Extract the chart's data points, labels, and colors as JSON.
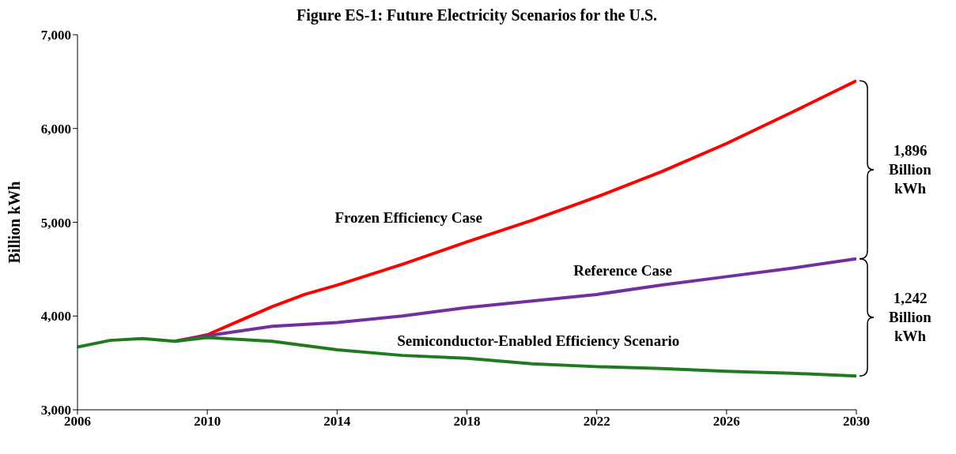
{
  "chart_data": {
    "type": "line",
    "title": "Figure ES-1: Future Electricity Scenarios for the U.S.",
    "ylabel": "Billion kWh",
    "xlim": [
      2006,
      2030
    ],
    "xticks": [
      2006,
      2010,
      2014,
      2018,
      2022,
      2026,
      2030
    ],
    "ylim": [
      3000,
      7000
    ],
    "yticks": [
      {
        "value": 3000,
        "label": "3,000"
      },
      {
        "value": 4000,
        "label": "4,000"
      },
      {
        "value": 5000,
        "label": "5,000"
      },
      {
        "value": 6000,
        "label": "6,000"
      },
      {
        "value": 7000,
        "label": "7,000"
      }
    ],
    "grid": false,
    "legend": false,
    "marker": "none",
    "line_style": "solid",
    "series": [
      {
        "name": "Frozen Efficiency Case",
        "color": "#ff0000",
        "x": [
          2009,
          2010,
          2011,
          2012,
          2013,
          2014,
          2016,
          2018,
          2020,
          2022,
          2024,
          2026,
          2028,
          2030
        ],
        "values": [
          3730,
          3800,
          3950,
          4100,
          4230,
          4330,
          4550,
          4790,
          5020,
          5270,
          5540,
          5840,
          6170,
          6510
        ]
      },
      {
        "name": "Reference Case",
        "color": "#7030a0",
        "x": [
          2009,
          2010,
          2012,
          2014,
          2016,
          2018,
          2020,
          2022,
          2024,
          2026,
          2028,
          2030
        ],
        "values": [
          3730,
          3790,
          3890,
          3930,
          4000,
          4090,
          4160,
          4230,
          4330,
          4420,
          4510,
          4610
        ]
      },
      {
        "name": "Semiconductor-Enabled Efficiency Scenario",
        "color": "#1e7b1e",
        "x": [
          2006,
          2007,
          2008,
          2009,
          2010,
          2012,
          2014,
          2016,
          2018,
          2020,
          2022,
          2024,
          2026,
          2028,
          2030
        ],
        "values": [
          3670,
          3740,
          3760,
          3730,
          3770,
          3730,
          3640,
          3580,
          3550,
          3490,
          3460,
          3440,
          3410,
          3390,
          3360
        ]
      }
    ],
    "annotations": [
      "1,896 Billion kWh",
      "1,242 Billion kWh"
    ]
  }
}
